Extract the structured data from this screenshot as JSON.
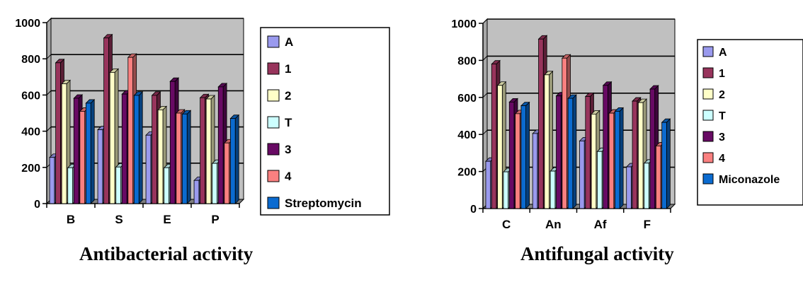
{
  "chart_data": [
    {
      "type": "bar",
      "categories": [
        "B",
        "S",
        "E",
        "P"
      ],
      "series": [
        {
          "name": "A",
          "color": "#9a9aee",
          "values": [
            255,
            408,
            378,
            128
          ]
        },
        {
          "name": "1",
          "color": "#98345c",
          "values": [
            778,
            915,
            598,
            585
          ]
        },
        {
          "name": "2",
          "color": "#ffffc8",
          "values": [
            662,
            725,
            518,
            578
          ]
        },
        {
          "name": "T",
          "color": "#ccffff",
          "values": [
            198,
            202,
            198,
            222
          ]
        },
        {
          "name": "3",
          "color": "#680a64",
          "values": [
            582,
            605,
            675,
            645
          ]
        },
        {
          "name": "4",
          "color": "#fa8080",
          "values": [
            510,
            808,
            500,
            335
          ]
        },
        {
          "name": "Streptomycin",
          "color": "#0b6bd0",
          "values": [
            555,
            598,
            495,
            470
          ]
        }
      ],
      "ylim": [
        0,
        1000
      ],
      "yticks": [
        0,
        200,
        400,
        600,
        800,
        1000
      ],
      "grid": true,
      "legend": "right",
      "caption": "Antibacterial activity"
    },
    {
      "type": "bar",
      "categories": [
        "C",
        "An",
        "Af",
        "F"
      ],
      "series": [
        {
          "name": "A",
          "color": "#9a9aee",
          "values": [
            255,
            405,
            365,
            225
          ]
        },
        {
          "name": "1",
          "color": "#98345c",
          "values": [
            780,
            915,
            605,
            580
          ]
        },
        {
          "name": "2",
          "color": "#ffffc8",
          "values": [
            665,
            722,
            510,
            572
          ]
        },
        {
          "name": "T",
          "color": "#ccffff",
          "values": [
            198,
            202,
            308,
            245
          ]
        },
        {
          "name": "3",
          "color": "#680a64",
          "values": [
            575,
            608,
            665,
            645
          ]
        },
        {
          "name": "4",
          "color": "#fa8080",
          "values": [
            512,
            812,
            515,
            338
          ]
        },
        {
          "name": "Miconazole",
          "color": "#0b6bd0",
          "values": [
            555,
            595,
            525,
            465
          ]
        }
      ],
      "ylim": [
        0,
        1000
      ],
      "yticks": [
        0,
        200,
        400,
        600,
        800,
        1000
      ],
      "grid": true,
      "legend": "right",
      "caption": "Antifungal activity"
    }
  ]
}
